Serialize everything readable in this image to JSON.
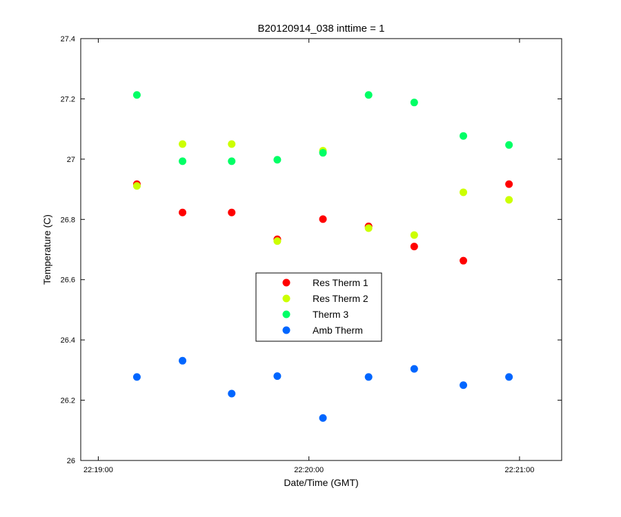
{
  "chart_data": {
    "type": "scatter",
    "title": "B20120914_038 inttime = 1",
    "xlabel": "Date/Time (GMT)",
    "ylabel": "Temperature (C)",
    "xlim": [
      "22:18:55",
      "22:21:12"
    ],
    "ylim": [
      26,
      27.4
    ],
    "x_ticks": [
      "22:19:00",
      "22:20:00",
      "22:21:00"
    ],
    "y_ticks": [
      "26",
      "26.2",
      "26.4",
      "26.6",
      "26.8",
      "27",
      "27.2",
      "27.4"
    ],
    "grid": false,
    "legend_position": "center",
    "series": [
      {
        "name": "Res Therm 1",
        "color": "#ff0000",
        "points": [
          {
            "x": "22:19:11",
            "y": 26.917
          },
          {
            "x": "22:19:24",
            "y": 26.823
          },
          {
            "x": "22:19:38",
            "y": 26.823
          },
          {
            "x": "22:19:51",
            "y": 26.734
          },
          {
            "x": "22:20:04",
            "y": 26.801
          },
          {
            "x": "22:20:17",
            "y": 26.777
          },
          {
            "x": "22:20:30",
            "y": 26.71
          },
          {
            "x": "22:20:44",
            "y": 26.663
          },
          {
            "x": "22:20:57",
            "y": 26.917
          }
        ]
      },
      {
        "name": "Res Therm 2",
        "color": "#ccff00",
        "points": [
          {
            "x": "22:19:11",
            "y": 26.911
          },
          {
            "x": "22:19:24",
            "y": 27.05
          },
          {
            "x": "22:19:38",
            "y": 27.05
          },
          {
            "x": "22:19:51",
            "y": 26.728
          },
          {
            "x": "22:20:04",
            "y": 27.028
          },
          {
            "x": "22:20:17",
            "y": 26.771
          },
          {
            "x": "22:20:30",
            "y": 26.748
          },
          {
            "x": "22:20:44",
            "y": 26.89
          },
          {
            "x": "22:20:57",
            "y": 26.865
          }
        ]
      },
      {
        "name": "Therm 3",
        "color": "#00ff66",
        "points": [
          {
            "x": "22:19:11",
            "y": 27.213
          },
          {
            "x": "22:19:24",
            "y": 26.993
          },
          {
            "x": "22:19:38",
            "y": 26.993
          },
          {
            "x": "22:19:51",
            "y": 26.998
          },
          {
            "x": "22:20:04",
            "y": 27.021
          },
          {
            "x": "22:20:17",
            "y": 27.213
          },
          {
            "x": "22:20:30",
            "y": 27.188
          },
          {
            "x": "22:20:44",
            "y": 27.077
          },
          {
            "x": "22:20:57",
            "y": 27.047
          }
        ]
      },
      {
        "name": "Amb Therm",
        "color": "#0066ff",
        "points": [
          {
            "x": "22:19:11",
            "y": 26.277
          },
          {
            "x": "22:19:24",
            "y": 26.331
          },
          {
            "x": "22:19:38",
            "y": 26.222
          },
          {
            "x": "22:19:51",
            "y": 26.28
          },
          {
            "x": "22:20:04",
            "y": 26.141
          },
          {
            "x": "22:20:17",
            "y": 26.277
          },
          {
            "x": "22:20:30",
            "y": 26.304
          },
          {
            "x": "22:20:44",
            "y": 26.25
          },
          {
            "x": "22:20:57",
            "y": 26.277
          }
        ]
      }
    ]
  }
}
